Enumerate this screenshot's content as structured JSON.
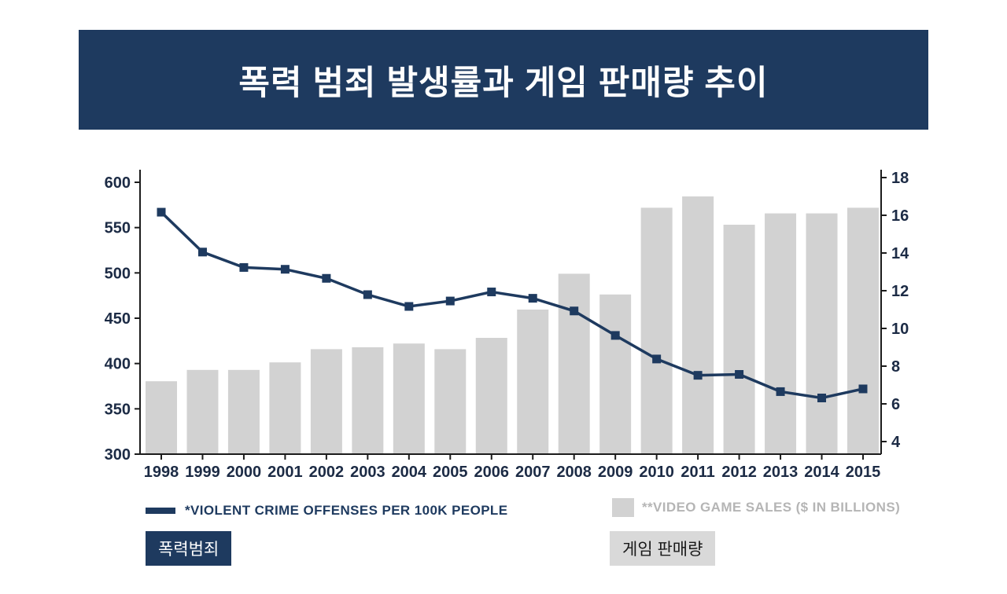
{
  "header": {
    "title": "폭력 범죄 발생률과 게임 판매량 추이"
  },
  "chart_data": {
    "type": "combo",
    "categories": [
      "1998",
      "1999",
      "2000",
      "2001",
      "2002",
      "2003",
      "2004",
      "2005",
      "2006",
      "2007",
      "2008",
      "2009",
      "2010",
      "2011",
      "2012",
      "2013",
      "2014",
      "2015"
    ],
    "series": [
      {
        "name": "*VIOLENT CRIME OFFENSES PER 100K PEOPLE",
        "type": "line",
        "axis": "left",
        "color": "#1e3a5f",
        "values": [
          567,
          523,
          506,
          504,
          494,
          476,
          463,
          469,
          479,
          472,
          458,
          431,
          405,
          387,
          388,
          369,
          362,
          372
        ]
      },
      {
        "name": "**VIDEO GAME SALES ($ IN BILLIONS)",
        "type": "bar",
        "axis": "right",
        "color": "#d2d2d2",
        "values": [
          7.2,
          7.8,
          7.8,
          8.2,
          8.9,
          9.0,
          9.2,
          8.9,
          9.5,
          11.0,
          12.9,
          11.8,
          16.4,
          17.0,
          15.5,
          16.1,
          16.1,
          16.4
        ]
      }
    ],
    "left_axis": {
      "min": 300,
      "max": 600,
      "ticks": [
        600,
        550,
        500,
        450,
        400,
        350,
        300
      ]
    },
    "right_axis": {
      "min": 4,
      "max": 18,
      "ticks": [
        18,
        16,
        14,
        12,
        10,
        8,
        6,
        4
      ]
    },
    "grid": false,
    "legend_position": "bottom"
  },
  "tags": {
    "crime": "폭력범죄",
    "sales": "게임 판매량"
  }
}
